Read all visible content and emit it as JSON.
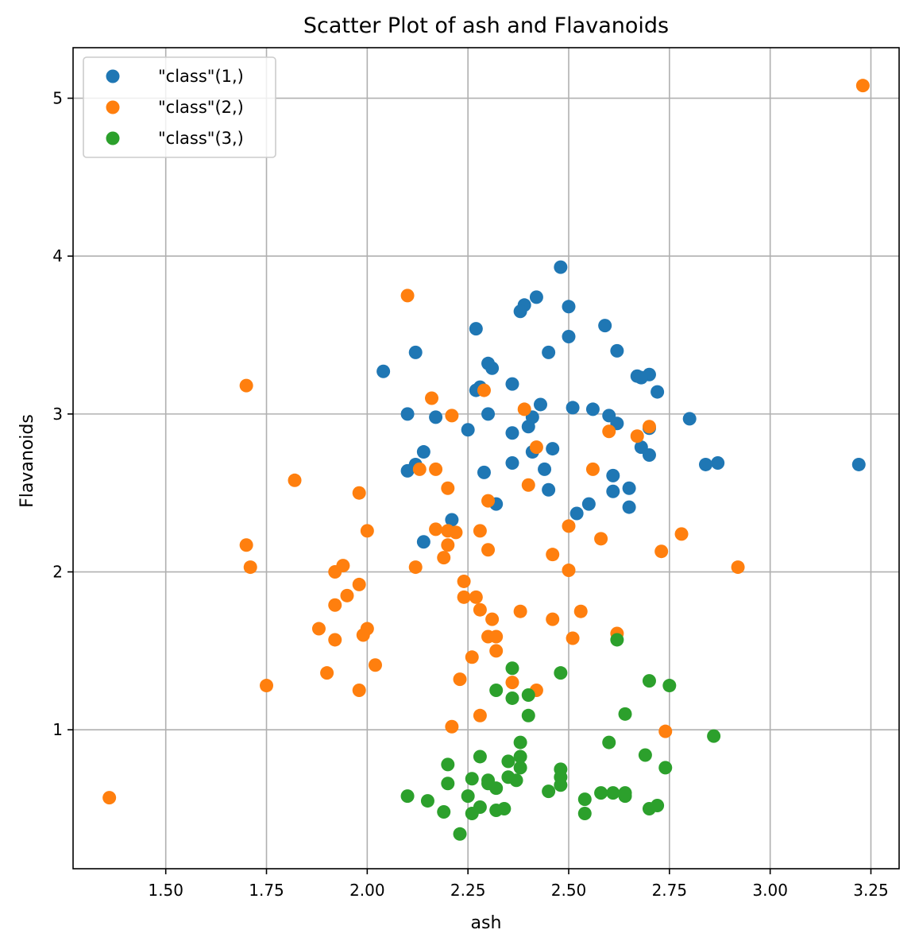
{
  "chart_data": {
    "type": "scatter",
    "title": "Scatter Plot of ash and Flavanoids",
    "xlabel": "ash",
    "ylabel": "Flavanoids",
    "xlim": [
      1.27,
      3.32
    ],
    "ylim": [
      0.12,
      5.32
    ],
    "xticks": [
      1.5,
      1.75,
      2.0,
      2.25,
      2.5,
      2.75,
      3.0,
      3.25
    ],
    "xtick_labels": [
      "1.50",
      "1.75",
      "2.00",
      "2.25",
      "2.50",
      "2.75",
      "3.00",
      "3.25"
    ],
    "yticks": [
      1,
      2,
      3,
      4,
      5
    ],
    "ytick_labels": [
      "1",
      "2",
      "3",
      "4",
      "5"
    ],
    "grid": true,
    "legend": "upper-left",
    "series": [
      {
        "name": "\"class\"(1,)",
        "color": "#1f77b4",
        "points": [
          [
            2.48,
            3.93
          ],
          [
            2.42,
            3.74
          ],
          [
            2.39,
            3.69
          ],
          [
            2.5,
            3.68
          ],
          [
            2.38,
            3.65
          ],
          [
            2.59,
            3.56
          ],
          [
            2.27,
            3.54
          ],
          [
            2.5,
            3.49
          ],
          [
            2.62,
            3.4
          ],
          [
            2.45,
            3.39
          ],
          [
            2.12,
            3.39
          ],
          [
            2.3,
            3.32
          ],
          [
            2.31,
            3.29
          ],
          [
            2.04,
            3.27
          ],
          [
            2.7,
            3.25
          ],
          [
            2.67,
            3.24
          ],
          [
            2.68,
            3.23
          ],
          [
            2.36,
            3.19
          ],
          [
            2.28,
            3.17
          ],
          [
            2.27,
            3.15
          ],
          [
            2.72,
            3.14
          ],
          [
            2.43,
            3.06
          ],
          [
            2.51,
            3.04
          ],
          [
            2.56,
            3.03
          ],
          [
            2.1,
            3.0
          ],
          [
            2.3,
            3.0
          ],
          [
            2.6,
            2.99
          ],
          [
            2.41,
            2.98
          ],
          [
            2.17,
            2.98
          ],
          [
            2.8,
            2.97
          ],
          [
            2.62,
            2.94
          ],
          [
            2.4,
            2.92
          ],
          [
            2.7,
            2.91
          ],
          [
            2.25,
            2.9
          ],
          [
            2.36,
            2.88
          ],
          [
            2.68,
            2.79
          ],
          [
            2.46,
            2.78
          ],
          [
            2.41,
            2.76
          ],
          [
            2.14,
            2.76
          ],
          [
            2.7,
            2.74
          ],
          [
            2.36,
            2.69
          ],
          [
            2.87,
            2.69
          ],
          [
            2.84,
            2.68
          ],
          [
            3.22,
            2.68
          ],
          [
            2.12,
            2.68
          ],
          [
            2.44,
            2.65
          ],
          [
            2.1,
            2.64
          ],
          [
            2.29,
            2.63
          ],
          [
            2.61,
            2.61
          ],
          [
            2.65,
            2.53
          ],
          [
            2.45,
            2.52
          ],
          [
            2.61,
            2.51
          ],
          [
            2.55,
            2.43
          ],
          [
            2.32,
            2.43
          ],
          [
            2.65,
            2.41
          ],
          [
            2.52,
            2.37
          ],
          [
            2.21,
            2.33
          ],
          [
            2.14,
            2.19
          ]
        ]
      },
      {
        "name": "\"class\"(2,)",
        "color": "#ff7f0e",
        "points": [
          [
            3.23,
            5.08
          ],
          [
            2.1,
            3.75
          ],
          [
            1.7,
            3.18
          ],
          [
            2.29,
            3.15
          ],
          [
            2.16,
            3.1
          ],
          [
            2.39,
            3.03
          ],
          [
            2.21,
            2.99
          ],
          [
            2.7,
            2.92
          ],
          [
            2.6,
            2.89
          ],
          [
            2.67,
            2.86
          ],
          [
            2.42,
            2.79
          ],
          [
            2.13,
            2.65
          ],
          [
            2.17,
            2.65
          ],
          [
            2.56,
            2.65
          ],
          [
            1.82,
            2.58
          ],
          [
            2.4,
            2.55
          ],
          [
            2.2,
            2.53
          ],
          [
            1.98,
            2.5
          ],
          [
            2.3,
            2.45
          ],
          [
            2.5,
            2.29
          ],
          [
            2.17,
            2.27
          ],
          [
            2.28,
            2.26
          ],
          [
            2.0,
            2.26
          ],
          [
            2.2,
            2.26
          ],
          [
            2.22,
            2.25
          ],
          [
            2.78,
            2.24
          ],
          [
            2.58,
            2.21
          ],
          [
            1.7,
            2.17
          ],
          [
            2.2,
            2.17
          ],
          [
            2.3,
            2.14
          ],
          [
            2.73,
            2.13
          ],
          [
            2.46,
            2.11
          ],
          [
            2.19,
            2.09
          ],
          [
            1.71,
            2.03
          ],
          [
            2.12,
            2.03
          ],
          [
            2.92,
            2.03
          ],
          [
            1.94,
            2.04
          ],
          [
            2.5,
            2.01
          ],
          [
            1.92,
            2.0
          ],
          [
            2.24,
            1.94
          ],
          [
            1.98,
            1.92
          ],
          [
            1.95,
            1.85
          ],
          [
            2.24,
            1.84
          ],
          [
            2.27,
            1.84
          ],
          [
            1.92,
            1.79
          ],
          [
            2.28,
            1.76
          ],
          [
            2.38,
            1.75
          ],
          [
            2.53,
            1.75
          ],
          [
            2.46,
            1.7
          ],
          [
            2.31,
            1.7
          ],
          [
            1.88,
            1.64
          ],
          [
            2.0,
            1.64
          ],
          [
            2.62,
            1.61
          ],
          [
            1.99,
            1.6
          ],
          [
            2.3,
            1.59
          ],
          [
            2.32,
            1.59
          ],
          [
            2.51,
            1.58
          ],
          [
            1.92,
            1.57
          ],
          [
            2.32,
            1.5
          ],
          [
            2.26,
            1.46
          ],
          [
            2.02,
            1.41
          ],
          [
            1.9,
            1.36
          ],
          [
            2.23,
            1.32
          ],
          [
            2.36,
            1.3
          ],
          [
            1.75,
            1.28
          ],
          [
            1.98,
            1.25
          ],
          [
            2.42,
            1.25
          ],
          [
            2.28,
            1.09
          ],
          [
            2.21,
            1.02
          ],
          [
            2.74,
            0.99
          ],
          [
            1.36,
            0.57
          ]
        ]
      },
      {
        "name": "\"class\"(3,)",
        "color": "#2ca02c",
        "points": [
          [
            2.62,
            1.57
          ],
          [
            2.36,
            1.39
          ],
          [
            2.48,
            1.36
          ],
          [
            2.7,
            1.31
          ],
          [
            2.75,
            1.28
          ],
          [
            2.32,
            1.25
          ],
          [
            2.4,
            1.22
          ],
          [
            2.36,
            1.2
          ],
          [
            2.64,
            1.1
          ],
          [
            2.4,
            1.09
          ],
          [
            2.86,
            0.96
          ],
          [
            2.38,
            0.92
          ],
          [
            2.6,
            0.92
          ],
          [
            2.69,
            0.84
          ],
          [
            2.28,
            0.83
          ],
          [
            2.38,
            0.83
          ],
          [
            2.35,
            0.8
          ],
          [
            2.2,
            0.78
          ],
          [
            2.38,
            0.76
          ],
          [
            2.74,
            0.76
          ],
          [
            2.48,
            0.75
          ],
          [
            2.48,
            0.7
          ],
          [
            2.35,
            0.7
          ],
          [
            2.26,
            0.69
          ],
          [
            2.37,
            0.68
          ],
          [
            2.3,
            0.68
          ],
          [
            2.3,
            0.66
          ],
          [
            2.2,
            0.66
          ],
          [
            2.48,
            0.65
          ],
          [
            2.32,
            0.63
          ],
          [
            2.45,
            0.61
          ],
          [
            2.58,
            0.6
          ],
          [
            2.61,
            0.6
          ],
          [
            2.64,
            0.6
          ],
          [
            2.1,
            0.58
          ],
          [
            2.25,
            0.58
          ],
          [
            2.64,
            0.58
          ],
          [
            2.15,
            0.55
          ],
          [
            2.54,
            0.56
          ],
          [
            2.72,
            0.52
          ],
          [
            2.28,
            0.51
          ],
          [
            2.7,
            0.5
          ],
          [
            2.32,
            0.49
          ],
          [
            2.34,
            0.5
          ],
          [
            2.19,
            0.48
          ],
          [
            2.26,
            0.47
          ],
          [
            2.54,
            0.47
          ],
          [
            2.23,
            0.34
          ]
        ]
      }
    ]
  }
}
